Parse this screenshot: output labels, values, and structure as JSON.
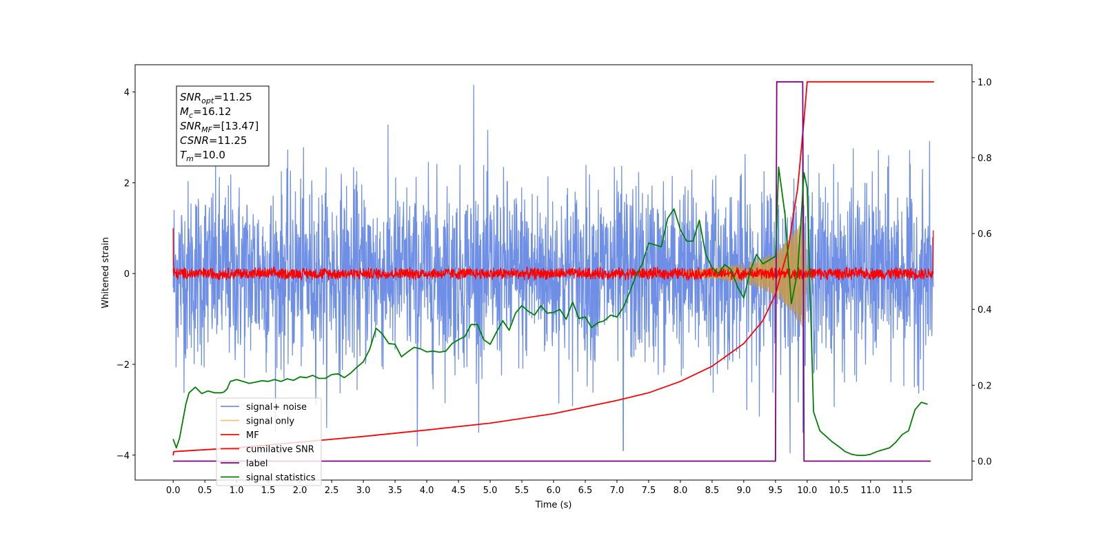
{
  "chart_data": {
    "type": "line",
    "title": "",
    "xlabel": "Time (s)",
    "ylabel": "Whitened strain",
    "xlim": [
      -0.6,
      12.6
    ],
    "ylim": [
      -4.55,
      4.6
    ],
    "y2lim": [
      -0.05,
      1.045
    ],
    "x_ticks": [
      0.0,
      0.5,
      1.0,
      1.5,
      2.0,
      2.5,
      3.0,
      3.5,
      4.0,
      4.5,
      5.0,
      5.5,
      6.0,
      6.5,
      7.0,
      7.5,
      8.0,
      8.5,
      9.0,
      9.5,
      10.0,
      10.5,
      11.0,
      11.5
    ],
    "x_tick_labels": [
      "0.0",
      "0.5",
      "1.0",
      "1.5",
      "2.0",
      "2.5",
      "3.0",
      "3.5",
      "4.0",
      "4.5",
      "5.0",
      "5.5",
      "6.0",
      "6.5",
      "7.0",
      "7.5",
      "8.0",
      "8.5",
      "9.0",
      "9.5",
      "10.0",
      "10.5",
      "11.0",
      "11.5"
    ],
    "y_ticks": [
      -4,
      -2,
      0,
      2,
      4
    ],
    "y_tick_labels": [
      "−4",
      "−2",
      "0",
      "2",
      "4"
    ],
    "y2_ticks": [
      0.0,
      0.2,
      0.4,
      0.6,
      0.8,
      1.0
    ],
    "y2_tick_labels": [
      "0.0",
      "0.2",
      "0.4",
      "0.6",
      "0.8",
      "1.0"
    ],
    "grid": false,
    "legend_position": "lower-left",
    "legend": [
      {
        "label": "signal+ noise",
        "color": "#6f8fe6"
      },
      {
        "label": "signal only",
        "color": "#f5c26b"
      },
      {
        "label": "MF",
        "color": "#ff0000"
      },
      {
        "label": "cumilative SNR",
        "color": "#ff0000"
      },
      {
        "label": "label",
        "color": "#800080"
      },
      {
        "label": "signal statistics",
        "color": "#008000"
      }
    ],
    "annotation": {
      "lines": [
        {
          "sym": "SNR",
          "sub": "opt",
          "value": "=11.25"
        },
        {
          "sym": "M",
          "sub": "c",
          "value": "=16.12"
        },
        {
          "sym": "SNR",
          "sub": "MF",
          "value": "=[13.47]"
        },
        {
          "sym": "CSNR",
          "sub": "",
          "value": "=11.25"
        },
        {
          "sym": "T",
          "sub": "m",
          "value": "=10.0"
        }
      ]
    },
    "series": [
      {
        "name": "signal+ noise",
        "axis": "left",
        "color": "#6f8fe6",
        "t_range": [
          0.0,
          11.99
        ],
        "envelope_sigma": 1.0,
        "notable_peaks": [
          [
            4.74,
            4.15
          ],
          [
            3.85,
            -3.8
          ],
          [
            7.1,
            -3.9
          ],
          [
            9.73,
            -3.95
          ],
          [
            9.93,
            3.15
          ]
        ]
      },
      {
        "name": "signal only",
        "axis": "left",
        "color": "#f5c26b",
        "chirp_envelope": {
          "x": [
            8.0,
            8.5,
            9.0,
            9.3,
            9.6,
            9.8,
            9.95,
            10.0
          ],
          "amp": [
            0.05,
            0.12,
            0.22,
            0.35,
            0.6,
            0.95,
            1.3,
            0.0
          ]
        }
      },
      {
        "name": "MF",
        "axis": "left",
        "color": "#ff0000",
        "t_range": [
          0.0,
          11.99
        ],
        "level": 0.0,
        "noise_amplitude": 0.12,
        "edge_values": [
          1.0,
          0.95
        ]
      },
      {
        "name": "cumilative SNR",
        "axis": "right",
        "color": "#ff0000",
        "x": [
          0.0,
          0.01,
          1.0,
          2.0,
          3.0,
          4.0,
          5.0,
          6.0,
          7.0,
          7.5,
          8.0,
          8.5,
          9.0,
          9.3,
          9.5,
          9.7,
          9.85,
          9.95,
          10.0,
          12.0
        ],
        "y": [
          0.015,
          0.025,
          0.035,
          0.05,
          0.065,
          0.082,
          0.1,
          0.125,
          0.16,
          0.18,
          0.21,
          0.25,
          0.31,
          0.37,
          0.44,
          0.56,
          0.72,
          0.9,
          1.0,
          1.0
        ]
      },
      {
        "name": "label",
        "axis": "right",
        "color": "#800080",
        "x": [
          0.0,
          9.5,
          9.52,
          9.93,
          9.95,
          11.95
        ],
        "y": [
          0.0,
          0.0,
          1.0,
          1.0,
          0.0,
          0.0
        ]
      },
      {
        "name": "signal statistics",
        "axis": "right",
        "color": "#008000",
        "x": [
          0.0,
          0.05,
          0.1,
          0.2,
          0.25,
          0.35,
          0.45,
          0.55,
          0.65,
          0.75,
          0.8,
          0.85,
          0.9,
          1.0,
          1.1,
          1.2,
          1.3,
          1.4,
          1.5,
          1.6,
          1.7,
          1.8,
          1.9,
          2.0,
          2.1,
          2.2,
          2.3,
          2.4,
          2.5,
          2.6,
          2.7,
          2.8,
          2.9,
          3.0,
          3.1,
          3.2,
          3.25,
          3.3,
          3.4,
          3.5,
          3.6,
          3.7,
          3.8,
          3.9,
          4.0,
          4.1,
          4.2,
          4.3,
          4.4,
          4.5,
          4.6,
          4.7,
          4.8,
          4.9,
          5.0,
          5.1,
          5.2,
          5.3,
          5.4,
          5.5,
          5.6,
          5.7,
          5.8,
          5.9,
          6.0,
          6.1,
          6.2,
          6.3,
          6.4,
          6.5,
          6.6,
          6.7,
          6.8,
          6.9,
          7.0,
          7.1,
          7.2,
          7.3,
          7.4,
          7.5,
          7.6,
          7.7,
          7.8,
          7.9,
          8.0,
          8.1,
          8.2,
          8.3,
          8.4,
          8.5,
          8.6,
          8.7,
          8.8,
          8.9,
          9.0,
          9.1,
          9.2,
          9.3,
          9.4,
          9.5,
          9.55,
          9.65,
          9.75,
          9.85,
          9.95,
          10.0,
          10.1,
          10.2,
          10.3,
          10.4,
          10.5,
          10.6,
          10.7,
          10.8,
          10.9,
          11.0,
          11.1,
          11.2,
          11.3,
          11.4,
          11.5,
          11.6,
          11.7,
          11.8,
          11.9
        ],
        "y": [
          0.058,
          0.035,
          0.06,
          0.15,
          0.18,
          0.195,
          0.178,
          0.185,
          0.18,
          0.18,
          0.182,
          0.19,
          0.21,
          0.215,
          0.21,
          0.205,
          0.208,
          0.212,
          0.21,
          0.215,
          0.21,
          0.217,
          0.213,
          0.222,
          0.22,
          0.226,
          0.218,
          0.218,
          0.228,
          0.23,
          0.22,
          0.232,
          0.248,
          0.262,
          0.295,
          0.35,
          0.343,
          0.335,
          0.31,
          0.308,
          0.275,
          0.288,
          0.3,
          0.296,
          0.288,
          0.29,
          0.287,
          0.29,
          0.31,
          0.32,
          0.328,
          0.36,
          0.36,
          0.32,
          0.308,
          0.34,
          0.37,
          0.345,
          0.39,
          0.41,
          0.395,
          0.385,
          0.41,
          0.39,
          0.392,
          0.4,
          0.374,
          0.42,
          0.376,
          0.38,
          0.352,
          0.365,
          0.37,
          0.385,
          0.38,
          0.405,
          0.445,
          0.49,
          0.52,
          0.575,
          0.57,
          0.565,
          0.64,
          0.665,
          0.61,
          0.58,
          0.58,
          0.635,
          0.545,
          0.51,
          0.495,
          0.518,
          0.505,
          0.46,
          0.43,
          0.5,
          0.545,
          0.52,
          0.53,
          0.54,
          0.775,
          0.65,
          0.415,
          0.5,
          0.76,
          0.72,
          0.13,
          0.08,
          0.065,
          0.05,
          0.038,
          0.025,
          0.018,
          0.015,
          0.015,
          0.018,
          0.025,
          0.03,
          0.035,
          0.05,
          0.07,
          0.08,
          0.135,
          0.155,
          0.15
        ]
      }
    ]
  }
}
